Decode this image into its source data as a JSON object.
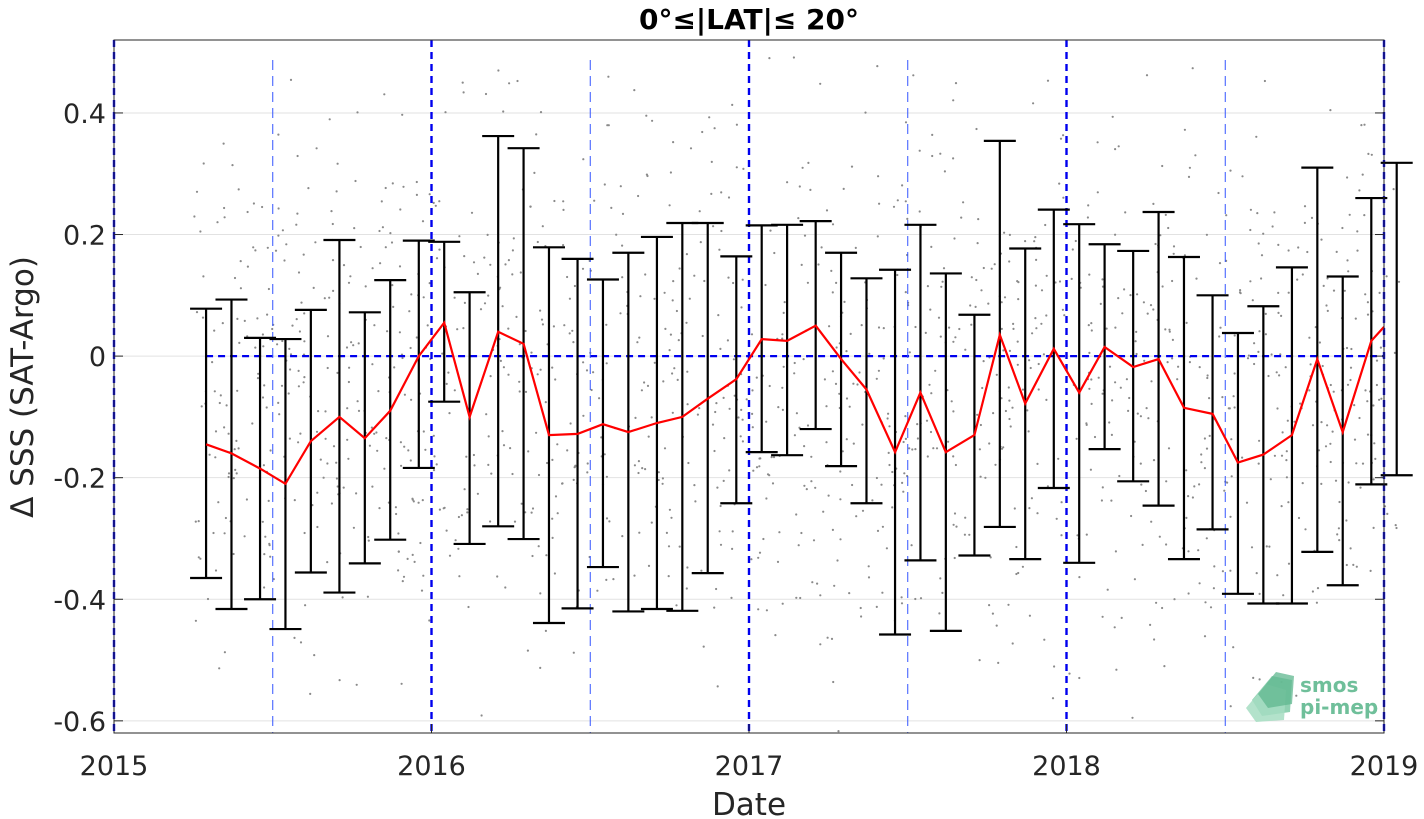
{
  "chart_data": {
    "type": "line",
    "title": "0°≤|LAT|≤ 20°",
    "xlabel": "Date",
    "ylabel": "Δ SSS (SAT-Argo)",
    "xlim": [
      2015,
      2019
    ],
    "ylim": [
      -0.62,
      0.52
    ],
    "x_ticks": [
      "2015",
      "2016",
      "2017",
      "2018",
      "2019"
    ],
    "y_ticks": [
      {
        "value": 0.4,
        "label": "0.4"
      },
      {
        "value": 0.2,
        "label": "0.2"
      },
      {
        "value": 0,
        "label": "0"
      },
      {
        "value": -0.2,
        "label": "-0.2"
      },
      {
        "value": -0.4,
        "label": "-0.4"
      },
      {
        "value": -0.6,
        "label": "-0.6"
      }
    ],
    "grid": true,
    "reference_lines": {
      "zero_line_y": 0,
      "year_lines": [
        2015,
        2016,
        2017,
        2018,
        2019
      ],
      "half_year_lines": [
        2015.5,
        2016.5,
        2017.5,
        2018.5
      ]
    },
    "series": [
      {
        "kind": "mean_with_error_bars",
        "color": "#ff0000",
        "errorbar_color": "#000000",
        "x": [
          2015.29,
          2015.37,
          2015.46,
          2015.54,
          2015.62,
          2015.71,
          2015.79,
          2015.87,
          2015.96,
          2016.04,
          2016.12,
          2016.21,
          2016.29,
          2016.37,
          2016.46,
          2016.54,
          2016.62,
          2016.71,
          2016.79,
          2016.87,
          2016.96,
          2017.04,
          2017.12,
          2017.21,
          2017.29,
          2017.37,
          2017.46,
          2017.54,
          2017.62,
          2017.71,
          2017.79,
          2017.87,
          2017.96,
          2018.04,
          2018.12,
          2018.21,
          2018.29,
          2018.37,
          2018.46,
          2018.54,
          2018.62,
          2018.71,
          2018.79,
          2018.87,
          2018.96,
          2019.04
        ],
        "mean": [
          -0.145,
          -0.16,
          -0.185,
          -0.21,
          -0.14,
          -0.1,
          -0.135,
          -0.09,
          0.0,
          0.055,
          -0.1,
          0.04,
          0.02,
          -0.13,
          -0.128,
          -0.112,
          -0.125,
          -0.11,
          -0.1,
          -0.07,
          -0.038,
          0.028,
          0.025,
          0.05,
          -0.005,
          -0.055,
          -0.158,
          -0.06,
          -0.158,
          -0.13,
          0.035,
          -0.078,
          0.012,
          -0.06,
          0.015,
          -0.018,
          -0.005,
          -0.085,
          -0.095,
          -0.175,
          -0.162,
          -0.13,
          -0.005,
          -0.125,
          0.025,
          0.048
        ],
        "upper": [
          0.078,
          0.093,
          0.03,
          0.028,
          0.076,
          0.191,
          0.072,
          0.125,
          0.19,
          0.188,
          0.105,
          0.362,
          0.342,
          0.179,
          0.16,
          0.126,
          0.17,
          0.196,
          0.219,
          0.219,
          0.164,
          0.215,
          0.216,
          0.222,
          0.17,
          0.128,
          0.142,
          0.216,
          0.136,
          0.068,
          0.354,
          0.177,
          0.241,
          0.217,
          0.184,
          0.173,
          0.237,
          0.163,
          0.1,
          0.038,
          0.082,
          0.146,
          0.31,
          0.131,
          0.26,
          0.318
        ],
        "lower": [
          -0.365,
          -0.416,
          -0.4,
          -0.449,
          -0.356,
          -0.389,
          -0.341,
          -0.302,
          -0.184,
          -0.075,
          -0.309,
          -0.28,
          -0.301,
          -0.439,
          -0.415,
          -0.347,
          -0.42,
          -0.416,
          -0.419,
          -0.357,
          -0.242,
          -0.158,
          -0.163,
          -0.12,
          -0.181,
          -0.242,
          -0.458,
          -0.336,
          -0.452,
          -0.328,
          -0.281,
          -0.334,
          -0.217,
          -0.34,
          -0.153,
          -0.206,
          -0.246,
          -0.334,
          -0.285,
          -0.391,
          -0.407,
          -0.407,
          -0.322,
          -0.377,
          -0.211,
          -0.196
        ]
      }
    ]
  },
  "logo": {
    "line1": "smos",
    "line2": "pi-mep",
    "color": "#6fbf9a"
  }
}
